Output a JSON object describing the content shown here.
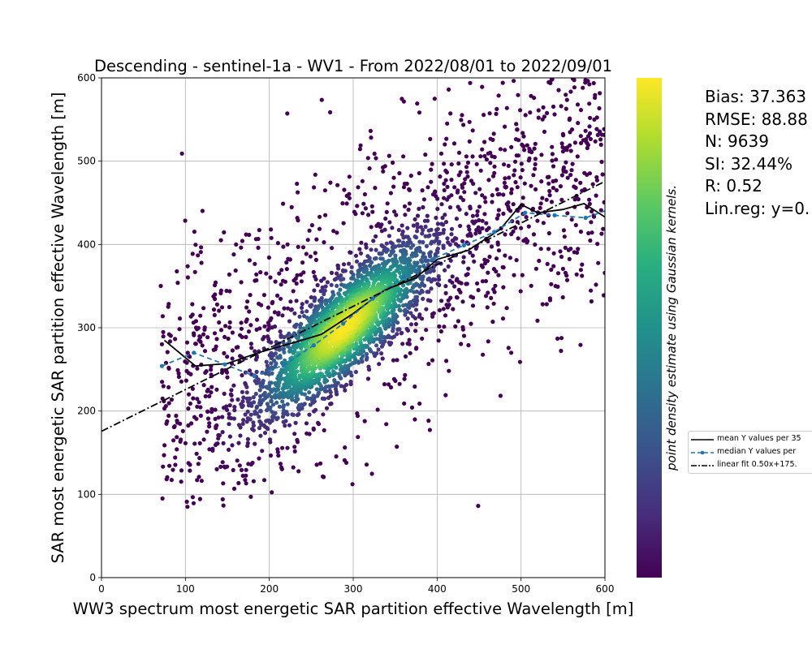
{
  "chart_data": {
    "type": "scatter",
    "title": "Descending - sentinel-1a - WV1 - From 2022/08/01 to 2022/09/01",
    "xlabel": "WW3 spectrum most energetic SAR partition effective Wavelength [m]",
    "ylabel": "SAR most energetic SAR partition effective Wavelength [m]",
    "xlim": [
      0,
      600
    ],
    "ylim": [
      0,
      600
    ],
    "xticks": [
      "0",
      "100",
      "200",
      "300",
      "400",
      "500",
      "600"
    ],
    "yticks": [
      "0",
      "100",
      "200",
      "300",
      "400",
      "500",
      "600"
    ],
    "grid": true,
    "colormap": "viridis",
    "colorbar_label": "point density estimate using Gaussian kernels.",
    "colors": {
      "viridis": [
        "#440154",
        "#472d7b",
        "#3b528b",
        "#2c728e",
        "#21918c",
        "#28ae80",
        "#5ec962",
        "#addc30",
        "#fde725"
      ],
      "mean": "#000000",
      "median": "#1f77b4",
      "fit": "#000000"
    },
    "series": [
      {
        "name": "mean Y values per 35",
        "style": "solid",
        "x": [
          75,
          112,
          150,
          187,
          225,
          262,
          300,
          337,
          375,
          400,
          437,
          475,
          500,
          520,
          550,
          575,
          600
        ],
        "y": [
          285,
          254,
          257,
          270,
          281,
          292,
          317,
          345,
          360,
          382,
          393,
          418,
          448,
          438,
          442,
          449,
          433
        ]
      },
      {
        "name": "median Y values per",
        "style": "dashed-markers",
        "x": [
          72,
          110,
          147,
          182,
          217,
          253,
          288,
          323,
          360,
          396,
          432,
          468,
          505,
          540,
          577,
          605
        ],
        "y": [
          254,
          270,
          256,
          242,
          255,
          279,
          305,
          335,
          361,
          383,
          399,
          415,
          438,
          435,
          432,
          442
        ]
      },
      {
        "name": "linear fit 0.50x+175.",
        "style": "dashdot",
        "slope": 0.5,
        "intercept": 175.7
      }
    ],
    "density_cloud": {
      "n_points": 9639,
      "core": {
        "x": 290,
        "y": 300,
        "sd_along": 65,
        "sd_across": 20
      },
      "halo_x_range": [
        70,
        600
      ],
      "halo_y_range": [
        85,
        600
      ]
    },
    "legend_position": "right"
  },
  "stats": {
    "bias": "Bias: 37.363",
    "rmse": "RMSE: 88.88",
    "n": "N: 9639",
    "si": "SI: 32.44%",
    "r": "R: 0.52",
    "linreg": "Lin.reg: y=0."
  }
}
